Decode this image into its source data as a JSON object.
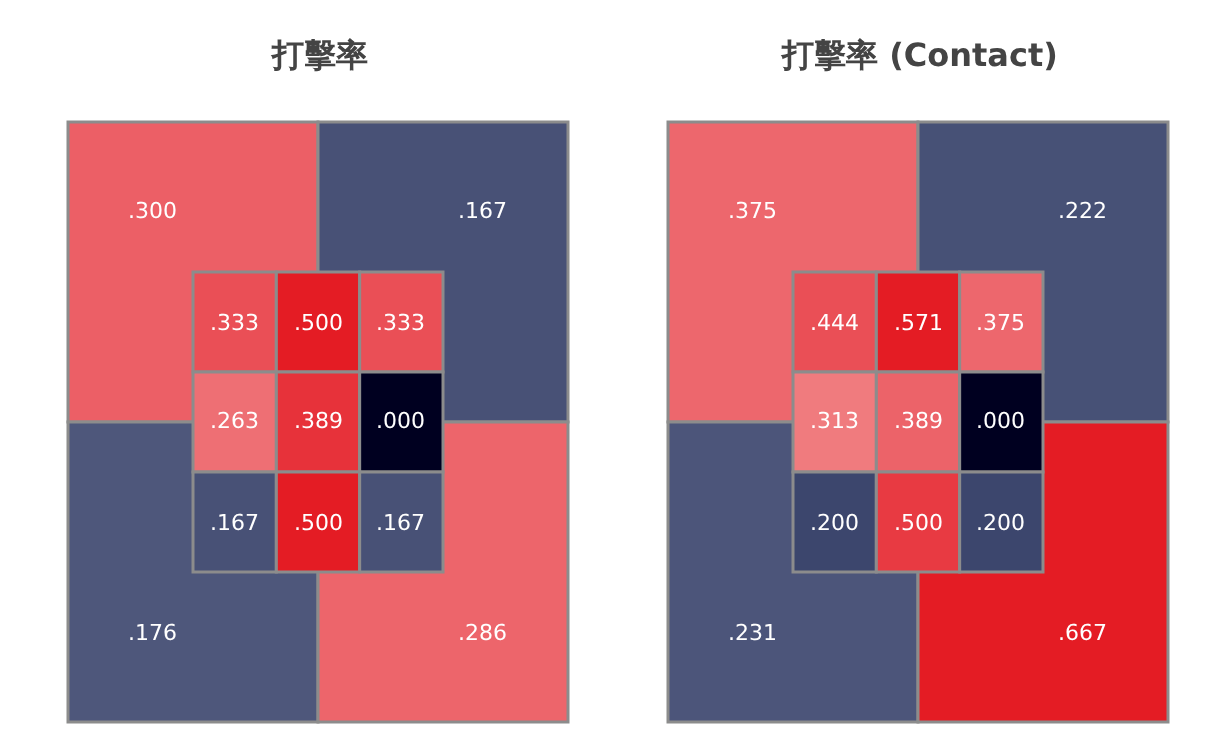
{
  "chart_data": [
    {
      "type": "other",
      "title": "打擊率",
      "values": [
        0.3,
        0.167,
        0.176,
        0.286
      ],
      "value_labels": [
        ".300",
        ".167",
        ".176",
        ".286"
      ]
    },
    {
      "type": "other",
      "values": [
        0.333,
        0.5,
        0.333,
        0.263,
        0.389,
        0.0,
        0.167,
        0.5,
        0.167
      ],
      "value_labels": [
        ".333",
        ".500",
        ".333",
        ".263",
        ".389",
        ".000",
        ".167",
        ".500",
        ".167"
      ]
    },
    {
      "type": "other",
      "title": "打擊率 (Contact)",
      "values": [
        0.375,
        0.222,
        0.231,
        0.667
      ],
      "value_labels": [
        ".375",
        ".222",
        ".231",
        ".667"
      ]
    },
    {
      "type": "other",
      "values": [
        0.444,
        0.571,
        0.375,
        0.313,
        0.389,
        0.0,
        0.2,
        0.5,
        0.2
      ],
      "value_labels": [
        ".444",
        ".571",
        ".375",
        ".313",
        ".389",
        ".000",
        ".200",
        ".500",
        ".200"
      ]
    }
  ]
}
